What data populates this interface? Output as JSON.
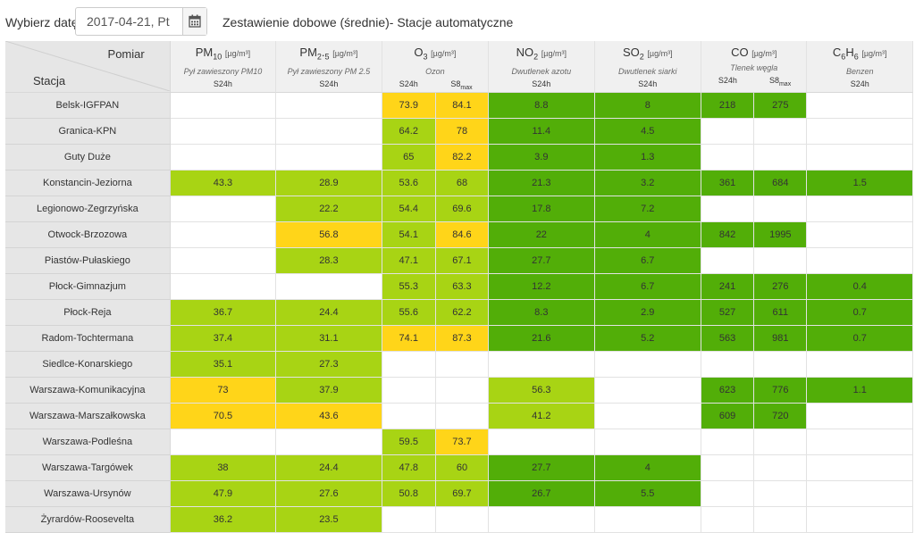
{
  "toolbar": {
    "date_label": "Wybierz datę:",
    "date_value": "2017-04-21, Pt",
    "calendar_icon": "calendar-icon",
    "title": "Zestawienie dobowe (średnie)- Stacje automatyczne"
  },
  "table": {
    "corner_top": "Pomiar",
    "corner_bottom": "Stacja",
    "pollutants": [
      {
        "name": "PM10",
        "sub": "",
        "unit": "[µg/m³]",
        "desc": "Pył zawieszony PM10",
        "sub_labels": [
          "S24h"
        ]
      },
      {
        "name": "PM2.5",
        "sub": "",
        "unit": "[µg/m³]",
        "desc": "Pył zawieszony PM 2.5",
        "sub_labels": [
          "S24h"
        ]
      },
      {
        "name": "O",
        "sub": "3",
        "unit": "[µg/m³]",
        "desc": "Ozon",
        "sub_labels": [
          "S24h",
          "S8max"
        ]
      },
      {
        "name": "NO",
        "sub": "2",
        "unit": "[µg/m³]",
        "desc": "Dwutlenek azotu",
        "sub_labels": [
          "S24h"
        ]
      },
      {
        "name": "SO",
        "sub": "2",
        "unit": "[µg/m³]",
        "desc": "Dwutlenek siarki",
        "sub_labels": [
          "S24h"
        ]
      },
      {
        "name": "CO",
        "sub": "",
        "unit": "[µg/m³]",
        "desc": "Tlenek węgla",
        "sub_labels": [
          "S24h",
          "S8max"
        ]
      },
      {
        "name": "C6H6",
        "sub": "",
        "unit": "[µg/m³]",
        "desc": "Benzen",
        "sub_labels": [
          "S24h"
        ]
      }
    ],
    "color_legend": {
      "g": "#52ae08",
      "l": "#a8d414",
      "y": "#ffd519"
    },
    "rows": [
      {
        "station": "Belsk-IGFPAN",
        "values": [
          "",
          "",
          "73.9",
          "84.1",
          "8.8",
          "8",
          "218",
          "275",
          ""
        ],
        "colors": [
          "",
          "",
          "y",
          "y",
          "g",
          "g",
          "g",
          "g",
          ""
        ]
      },
      {
        "station": "Granica-KPN",
        "values": [
          "",
          "",
          "64.2",
          "78",
          "11.4",
          "4.5",
          "",
          "",
          ""
        ],
        "colors": [
          "",
          "",
          "l",
          "y",
          "g",
          "g",
          "",
          "",
          ""
        ]
      },
      {
        "station": "Guty Duże",
        "values": [
          "",
          "",
          "65",
          "82.2",
          "3.9",
          "1.3",
          "",
          "",
          ""
        ],
        "colors": [
          "",
          "",
          "l",
          "y",
          "g",
          "g",
          "",
          "",
          ""
        ]
      },
      {
        "station": "Konstancin-Jeziorna",
        "values": [
          "43.3",
          "28.9",
          "53.6",
          "68",
          "21.3",
          "3.2",
          "361",
          "684",
          "1.5"
        ],
        "colors": [
          "l",
          "l",
          "l",
          "l",
          "g",
          "g",
          "g",
          "g",
          "g"
        ]
      },
      {
        "station": "Legionowo-Zegrzyńska",
        "values": [
          "",
          "22.2",
          "54.4",
          "69.6",
          "17.8",
          "7.2",
          "",
          "",
          ""
        ],
        "colors": [
          "",
          "l",
          "l",
          "l",
          "g",
          "g",
          "",
          "",
          ""
        ]
      },
      {
        "station": "Otwock-Brzozowa",
        "values": [
          "",
          "56.8",
          "54.1",
          "84.6",
          "22",
          "4",
          "842",
          "1995",
          ""
        ],
        "colors": [
          "",
          "y",
          "l",
          "y",
          "g",
          "g",
          "g",
          "g",
          ""
        ]
      },
      {
        "station": "Piastów-Pułaskiego",
        "values": [
          "",
          "28.3",
          "47.1",
          "67.1",
          "27.7",
          "6.7",
          "",
          "",
          ""
        ],
        "colors": [
          "",
          "l",
          "l",
          "l",
          "g",
          "g",
          "",
          "",
          ""
        ]
      },
      {
        "station": "Płock-Gimnazjum",
        "values": [
          "",
          "",
          "55.3",
          "63.3",
          "12.2",
          "6.7",
          "241",
          "276",
          "0.4"
        ],
        "colors": [
          "",
          "",
          "l",
          "l",
          "g",
          "g",
          "g",
          "g",
          "g"
        ]
      },
      {
        "station": "Płock-Reja",
        "values": [
          "36.7",
          "24.4",
          "55.6",
          "62.2",
          "8.3",
          "2.9",
          "527",
          "611",
          "0.7"
        ],
        "colors": [
          "l",
          "l",
          "l",
          "l",
          "g",
          "g",
          "g",
          "g",
          "g"
        ]
      },
      {
        "station": "Radom-Tochtermana",
        "values": [
          "37.4",
          "31.1",
          "74.1",
          "87.3",
          "21.6",
          "5.2",
          "563",
          "981",
          "0.7"
        ],
        "colors": [
          "l",
          "l",
          "y",
          "y",
          "g",
          "g",
          "g",
          "g",
          "g"
        ]
      },
      {
        "station": "Siedlce-Konarskiego",
        "values": [
          "35.1",
          "27.3",
          "",
          "",
          "",
          "",
          "",
          "",
          ""
        ],
        "colors": [
          "l",
          "l",
          "",
          "",
          "",
          "",
          "",
          "",
          ""
        ]
      },
      {
        "station": "Warszawa-Komunikacyjna",
        "values": [
          "73",
          "37.9",
          "",
          "",
          "56.3",
          "",
          "623",
          "776",
          "1.1"
        ],
        "colors": [
          "y",
          "l",
          "",
          "",
          "l",
          "",
          "g",
          "g",
          "g"
        ]
      },
      {
        "station": "Warszawa-Marszałkowska",
        "values": [
          "70.5",
          "43.6",
          "",
          "",
          "41.2",
          "",
          "609",
          "720",
          ""
        ],
        "colors": [
          "y",
          "y",
          "",
          "",
          "l",
          "",
          "g",
          "g",
          ""
        ]
      },
      {
        "station": "Warszawa-Podleśna",
        "values": [
          "",
          "",
          "59.5",
          "73.7",
          "",
          "",
          "",
          "",
          ""
        ],
        "colors": [
          "",
          "",
          "l",
          "y",
          "",
          "",
          "",
          "",
          ""
        ]
      },
      {
        "station": "Warszawa-Targówek",
        "values": [
          "38",
          "24.4",
          "47.8",
          "60",
          "27.7",
          "4",
          "",
          "",
          ""
        ],
        "colors": [
          "l",
          "l",
          "l",
          "l",
          "g",
          "g",
          "",
          "",
          ""
        ]
      },
      {
        "station": "Warszawa-Ursynów",
        "values": [
          "47.9",
          "27.6",
          "50.8",
          "69.7",
          "26.7",
          "5.5",
          "",
          "",
          ""
        ],
        "colors": [
          "l",
          "l",
          "l",
          "l",
          "g",
          "g",
          "",
          "",
          ""
        ]
      },
      {
        "station": "Żyrardów-Roosevelta",
        "values": [
          "36.2",
          "23.5",
          "",
          "",
          "",
          "",
          "",
          "",
          ""
        ],
        "colors": [
          "l",
          "l",
          "",
          "",
          "",
          "",
          "",
          "",
          ""
        ]
      }
    ]
  }
}
